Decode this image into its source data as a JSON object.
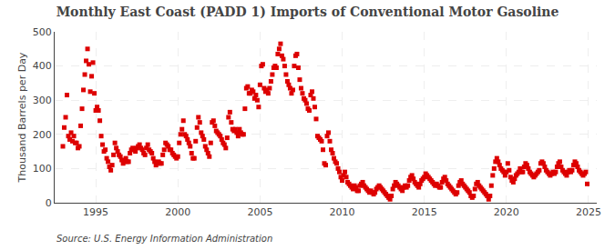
{
  "chart_data": {
    "type": "scatter",
    "title": "Monthly East Coast (PADD 1) Imports of Conventional Motor Gasoline",
    "ylabel": "Thousand Barrels per Day",
    "annotations": [
      "Source: U.S. Energy Information Administration"
    ],
    "color": "#DD0000",
    "marker": "square",
    "grid": true,
    "xlim": [
      1992.5,
      2025.5
    ],
    "xticks": [
      1995,
      2000,
      2005,
      2010,
      2015,
      2020,
      2025
    ],
    "ylim": [
      0,
      500
    ],
    "yticks": [
      0,
      100,
      200,
      300,
      400,
      500
    ],
    "x": [
      1993.0,
      1993.083,
      1993.167,
      1993.25,
      1993.333,
      1993.417,
      1993.5,
      1993.583,
      1993.667,
      1993.75,
      1993.833,
      1993.917,
      1994.0,
      1994.083,
      1994.167,
      1994.25,
      1994.333,
      1994.417,
      1994.5,
      1994.583,
      1994.667,
      1994.75,
      1994.833,
      1994.917,
      1995.0,
      1995.083,
      1995.167,
      1995.25,
      1995.333,
      1995.417,
      1995.5,
      1995.583,
      1995.667,
      1995.75,
      1995.833,
      1995.917,
      1996.0,
      1996.083,
      1996.167,
      1996.25,
      1996.333,
      1996.417,
      1996.5,
      1996.583,
      1996.667,
      1996.75,
      1996.833,
      1996.917,
      1997.0,
      1997.083,
      1997.167,
      1997.25,
      1997.333,
      1997.417,
      1997.5,
      1997.583,
      1997.667,
      1997.75,
      1997.833,
      1997.917,
      1998.0,
      1998.083,
      1998.167,
      1998.25,
      1998.333,
      1998.417,
      1998.5,
      1998.583,
      1998.667,
      1998.75,
      1998.833,
      1998.917,
      1999.0,
      1999.083,
      1999.167,
      1999.25,
      1999.333,
      1999.417,
      1999.5,
      1999.583,
      1999.667,
      1999.75,
      1999.833,
      1999.917,
      2000.0,
      2000.083,
      2000.167,
      2000.25,
      2000.333,
      2000.417,
      2000.5,
      2000.583,
      2000.667,
      2000.75,
      2000.833,
      2000.917,
      2001.0,
      2001.083,
      2001.167,
      2001.25,
      2001.333,
      2001.417,
      2001.5,
      2001.583,
      2001.667,
      2001.75,
      2001.833,
      2001.917,
      2002.0,
      2002.083,
      2002.167,
      2002.25,
      2002.333,
      2002.417,
      2002.5,
      2002.583,
      2002.667,
      2002.75,
      2002.833,
      2002.917,
      2003.0,
      2003.083,
      2003.167,
      2003.25,
      2003.333,
      2003.417,
      2003.5,
      2003.583,
      2003.667,
      2003.75,
      2003.833,
      2003.917,
      2004.0,
      2004.083,
      2004.167,
      2004.25,
      2004.333,
      2004.417,
      2004.5,
      2004.583,
      2004.667,
      2004.75,
      2004.833,
      2004.917,
      2005.0,
      2005.083,
      2005.167,
      2005.25,
      2005.333,
      2005.417,
      2005.5,
      2005.583,
      2005.667,
      2005.75,
      2005.833,
      2005.917,
      2006.0,
      2006.083,
      2006.167,
      2006.25,
      2006.333,
      2006.417,
      2006.5,
      2006.583,
      2006.667,
      2006.75,
      2006.833,
      2006.917,
      2007.0,
      2007.083,
      2007.167,
      2007.25,
      2007.333,
      2007.417,
      2007.5,
      2007.583,
      2007.667,
      2007.75,
      2007.833,
      2007.917,
      2008.0,
      2008.083,
      2008.167,
      2008.25,
      2008.333,
      2008.417,
      2008.5,
      2008.583,
      2008.667,
      2008.75,
      2008.833,
      2008.917,
      2009.0,
      2009.083,
      2009.167,
      2009.25,
      2009.333,
      2009.417,
      2009.5,
      2009.583,
      2009.667,
      2009.75,
      2009.833,
      2009.917,
      2010.0,
      2010.083,
      2010.167,
      2010.25,
      2010.333,
      2010.417,
      2010.5,
      2010.583,
      2010.667,
      2010.75,
      2010.833,
      2010.917,
      2011.0,
      2011.083,
      2011.167,
      2011.25,
      2011.333,
      2011.417,
      2011.5,
      2011.583,
      2011.667,
      2011.75,
      2011.833,
      2011.917,
      2012.0,
      2012.083,
      2012.167,
      2012.25,
      2012.333,
      2012.417,
      2012.5,
      2012.583,
      2012.667,
      2012.75,
      2012.833,
      2012.917,
      2013.0,
      2013.083,
      2013.167,
      2013.25,
      2013.333,
      2013.417,
      2013.5,
      2013.583,
      2013.667,
      2013.75,
      2013.833,
      2013.917,
      2014.0,
      2014.083,
      2014.167,
      2014.25,
      2014.333,
      2014.417,
      2014.5,
      2014.583,
      2014.667,
      2014.75,
      2014.833,
      2014.917,
      2015.0,
      2015.083,
      2015.167,
      2015.25,
      2015.333,
      2015.417,
      2015.5,
      2015.583,
      2015.667,
      2015.75,
      2015.833,
      2015.917,
      2016.0,
      2016.083,
      2016.167,
      2016.25,
      2016.333,
      2016.417,
      2016.5,
      2016.583,
      2016.667,
      2016.75,
      2016.833,
      2016.917,
      2017.0,
      2017.083,
      2017.167,
      2017.25,
      2017.333,
      2017.417,
      2017.5,
      2017.583,
      2017.667,
      2017.75,
      2017.833,
      2017.917,
      2018.0,
      2018.083,
      2018.167,
      2018.25,
      2018.333,
      2018.417,
      2018.5,
      2018.583,
      2018.667,
      2018.75,
      2018.833,
      2018.917,
      2019.0,
      2019.083,
      2019.167,
      2019.25,
      2019.333,
      2019.417,
      2019.5,
      2019.583,
      2019.667,
      2019.75,
      2019.833,
      2019.917,
      2020.0,
      2020.083,
      2020.167,
      2020.25,
      2020.333,
      2020.417,
      2020.5,
      2020.583,
      2020.667,
      2020.75,
      2020.833,
      2020.917,
      2021.0,
      2021.083,
      2021.167,
      2021.25,
      2021.333,
      2021.417,
      2021.5,
      2021.583,
      2021.667,
      2021.75,
      2021.833,
      2021.917,
      2022.0,
      2022.083,
      2022.167,
      2022.25,
      2022.333,
      2022.417,
      2022.5,
      2022.583,
      2022.667,
      2022.75,
      2022.833,
      2022.917,
      2023.0,
      2023.083,
      2023.167,
      2023.25,
      2023.333,
      2023.417,
      2023.5,
      2023.583,
      2023.667,
      2023.75,
      2023.833,
      2023.917,
      2024.0,
      2024.083,
      2024.167,
      2024.25,
      2024.333,
      2024.417,
      2024.5,
      2024.583,
      2024.667,
      2024.75,
      2024.833,
      2024.917
    ],
    "values": [
      165,
      220,
      250,
      315,
      195,
      185,
      205,
      180,
      195,
      175,
      175,
      160,
      165,
      225,
      275,
      330,
      375,
      415,
      450,
      405,
      325,
      370,
      410,
      320,
      270,
      280,
      270,
      240,
      195,
      170,
      150,
      155,
      130,
      120,
      105,
      95,
      110,
      140,
      175,
      160,
      150,
      140,
      135,
      125,
      115,
      120,
      130,
      120,
      120,
      145,
      155,
      160,
      155,
      150,
      160,
      165,
      170,
      160,
      155,
      145,
      140,
      160,
      170,
      155,
      150,
      145,
      130,
      120,
      110,
      115,
      120,
      115,
      115,
      140,
      155,
      175,
      170,
      165,
      155,
      155,
      145,
      140,
      135,
      130,
      135,
      175,
      200,
      215,
      240,
      200,
      195,
      185,
      175,
      165,
      145,
      130,
      130,
      180,
      220,
      250,
      235,
      205,
      195,
      185,
      165,
      155,
      145,
      135,
      175,
      235,
      240,
      225,
      210,
      205,
      200,
      195,
      185,
      175,
      170,
      160,
      190,
      250,
      265,
      235,
      215,
      210,
      215,
      205,
      195,
      215,
      205,
      200,
      200,
      275,
      335,
      340,
      320,
      320,
      330,
      325,
      305,
      315,
      300,
      280,
      345,
      400,
      405,
      335,
      325,
      330,
      320,
      335,
      355,
      375,
      395,
      400,
      395,
      435,
      450,
      465,
      430,
      420,
      400,
      375,
      355,
      345,
      335,
      320,
      330,
      400,
      430,
      435,
      395,
      360,
      335,
      320,
      305,
      300,
      290,
      275,
      270,
      315,
      325,
      305,
      280,
      245,
      195,
      190,
      185,
      180,
      155,
      115,
      110,
      195,
      205,
      180,
      155,
      145,
      130,
      120,
      115,
      100,
      90,
      75,
      65,
      80,
      90,
      75,
      60,
      55,
      50,
      45,
      40,
      50,
      45,
      35,
      35,
      50,
      55,
      60,
      50,
      45,
      40,
      35,
      30,
      35,
      30,
      25,
      30,
      40,
      45,
      50,
      45,
      40,
      35,
      30,
      25,
      20,
      15,
      10,
      20,
      40,
      50,
      60,
      55,
      50,
      45,
      40,
      35,
      45,
      50,
      45,
      50,
      65,
      75,
      80,
      70,
      60,
      55,
      50,
      45,
      55,
      65,
      70,
      75,
      85,
      80,
      75,
      70,
      65,
      60,
      55,
      50,
      55,
      50,
      45,
      45,
      60,
      70,
      75,
      65,
      55,
      50,
      45,
      40,
      35,
      30,
      25,
      30,
      50,
      60,
      65,
      55,
      50,
      45,
      40,
      35,
      30,
      20,
      15,
      20,
      40,
      55,
      60,
      50,
      45,
      40,
      35,
      30,
      25,
      20,
      10,
      20,
      50,
      80,
      100,
      120,
      130,
      120,
      110,
      100,
      95,
      90,
      80,
      90,
      115,
      95,
      75,
      65,
      60,
      70,
      80,
      85,
      90,
      100,
      90,
      90,
      105,
      115,
      110,
      100,
      90,
      85,
      80,
      75,
      80,
      85,
      90,
      95,
      115,
      120,
      115,
      105,
      95,
      90,
      85,
      80,
      85,
      90,
      85,
      90,
      105,
      115,
      120,
      105,
      95,
      90,
      85,
      80,
      90,
      95,
      90,
      95,
      110,
      120,
      115,
      105,
      95,
      90,
      85,
      80,
      85,
      90,
      55
    ]
  }
}
